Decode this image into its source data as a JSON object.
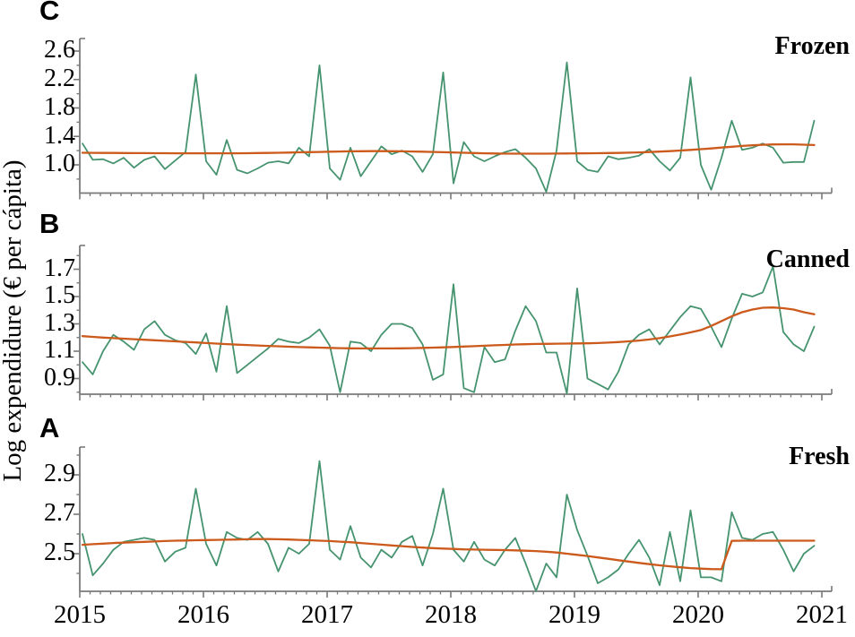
{
  "figure": {
    "y_axis_label": "Log expendidure (€ per cápita)",
    "x_tick_labels": [
      "2015",
      "2016",
      "2017",
      "2018",
      "2019",
      "2020",
      "2021"
    ],
    "colors": {
      "observed": "#46936f",
      "trend": "#cc5a1c",
      "axis": "#7a7a7a",
      "text": "#000000"
    }
  },
  "chart_data": [
    {
      "panel_letter": "C",
      "category_label": "Frozen",
      "type": "line",
      "x": {
        "start": "2015-01",
        "end": "2020-12",
        "frequency": "monthly",
        "n": 72
      },
      "x_tick_labels": [
        "2015",
        "2016",
        "2017",
        "2018",
        "2019",
        "2020",
        "2021"
      ],
      "ylim": [
        0.6,
        2.78
      ],
      "ytick_labels": [
        "1.0",
        "1.4",
        "1.8",
        "2.2",
        "2.6"
      ],
      "ytick_minor": [
        0.8,
        1.2,
        1.6,
        2.0,
        2.4
      ],
      "grid": false,
      "legend": "none",
      "series": [
        {
          "name": "monthly log expenditure",
          "color": "#46936f",
          "values": [
            1.3,
            1.07,
            1.08,
            1.02,
            1.1,
            0.96,
            1.07,
            1.12,
            0.94,
            1.06,
            1.18,
            2.27,
            1.05,
            0.86,
            1.35,
            0.93,
            0.88,
            0.95,
            1.03,
            1.05,
            1.02,
            1.24,
            1.12,
            2.4,
            0.95,
            0.79,
            1.24,
            0.84,
            1.05,
            1.26,
            1.15,
            1.2,
            1.12,
            0.9,
            1.15,
            2.3,
            0.74,
            1.32,
            1.12,
            1.05,
            1.12,
            1.18,
            1.22,
            1.1,
            0.95,
            0.62,
            1.2,
            2.44,
            1.05,
            0.93,
            0.9,
            1.12,
            1.08,
            1.1,
            1.13,
            1.22,
            1.05,
            0.92,
            1.1,
            2.23,
            1.0,
            0.65,
            1.1,
            1.62,
            1.21,
            1.24,
            1.3,
            1.24,
            1.03,
            1.04,
            1.04,
            1.62
          ]
        },
        {
          "name": "smoothed trend",
          "color": "#cc5a1c",
          "values": [
            1.17,
            1.169,
            1.168,
            1.167,
            1.166,
            1.165,
            1.165,
            1.164,
            1.164,
            1.163,
            1.163,
            1.162,
            1.162,
            1.162,
            1.162,
            1.163,
            1.164,
            1.166,
            1.168,
            1.17,
            1.173,
            1.176,
            1.179,
            1.182,
            1.185,
            1.188,
            1.19,
            1.192,
            1.193,
            1.193,
            1.192,
            1.19,
            1.188,
            1.185,
            1.182,
            1.178,
            1.174,
            1.17,
            1.166,
            1.163,
            1.16,
            1.158,
            1.157,
            1.157,
            1.157,
            1.158,
            1.159,
            1.16,
            1.161,
            1.162,
            1.164,
            1.166,
            1.168,
            1.171,
            1.175,
            1.18,
            1.186,
            1.193,
            1.201,
            1.21,
            1.22,
            1.231,
            1.243,
            1.255,
            1.266,
            1.275,
            1.282,
            1.287,
            1.289,
            1.288,
            1.284,
            1.278
          ]
        }
      ]
    },
    {
      "panel_letter": "B",
      "category_label": "Canned",
      "type": "line",
      "x": {
        "start": "2015-01",
        "end": "2020-12",
        "frequency": "monthly",
        "n": 72
      },
      "x_tick_labels": [
        "2015",
        "2016",
        "2017",
        "2018",
        "2019",
        "2020",
        "2021"
      ],
      "ylim": [
        0.78,
        1.87
      ],
      "ytick_labels": [
        "0.9",
        "1.1",
        "1.3",
        "1.5",
        "1.7"
      ],
      "ytick_minor": [
        0.8,
        1.0,
        1.2,
        1.4,
        1.6,
        1.8
      ],
      "grid": false,
      "legend": "none",
      "series": [
        {
          "name": "monthly log expenditure",
          "color": "#46936f",
          "values": [
            1.02,
            0.93,
            1.1,
            1.22,
            1.17,
            1.11,
            1.26,
            1.32,
            1.22,
            1.18,
            1.16,
            1.08,
            1.23,
            0.95,
            1.43,
            0.94,
            1.0,
            1.06,
            1.12,
            1.19,
            1.17,
            1.16,
            1.2,
            1.26,
            1.14,
            0.8,
            1.17,
            1.16,
            1.1,
            1.22,
            1.3,
            1.3,
            1.27,
            1.15,
            0.89,
            0.93,
            1.59,
            0.83,
            0.8,
            1.13,
            1.02,
            1.04,
            1.25,
            1.43,
            1.32,
            1.09,
            1.09,
            0.79,
            1.56,
            0.9,
            0.86,
            0.82,
            0.95,
            1.15,
            1.22,
            1.26,
            1.15,
            1.25,
            1.35,
            1.43,
            1.41,
            1.28,
            1.13,
            1.34,
            1.52,
            1.5,
            1.53,
            1.72,
            1.24,
            1.15,
            1.1,
            1.28
          ]
        },
        {
          "name": "smoothed trend",
          "color": "#cc5a1c",
          "values": [
            1.21,
            1.205,
            1.2,
            1.196,
            1.192,
            1.188,
            1.184,
            1.18,
            1.176,
            1.172,
            1.168,
            1.164,
            1.16,
            1.156,
            1.152,
            1.148,
            1.145,
            1.142,
            1.139,
            1.136,
            1.133,
            1.13,
            1.128,
            1.126,
            1.124,
            1.122,
            1.121,
            1.12,
            1.12,
            1.12,
            1.12,
            1.121,
            1.122,
            1.124,
            1.126,
            1.128,
            1.131,
            1.134,
            1.137,
            1.14,
            1.143,
            1.146,
            1.149,
            1.151,
            1.153,
            1.154,
            1.155,
            1.156,
            1.157,
            1.158,
            1.16,
            1.163,
            1.167,
            1.172,
            1.178,
            1.186,
            1.196,
            1.208,
            1.222,
            1.238,
            1.255,
            1.285,
            1.32,
            1.355,
            1.385,
            1.405,
            1.418,
            1.42,
            1.415,
            1.405,
            1.385,
            1.37
          ]
        }
      ]
    },
    {
      "panel_letter": "A",
      "category_label": "Fresh",
      "type": "line",
      "x": {
        "start": "2015-01",
        "end": "2020-12",
        "frequency": "monthly",
        "n": 72
      },
      "x_tick_labels": [
        "2015",
        "2016",
        "2017",
        "2018",
        "2019",
        "2020",
        "2021"
      ],
      "ylim": [
        2.31,
        3.04
      ],
      "ytick_labels": [
        "2.5",
        "2.7",
        "2.9"
      ],
      "ytick_minor": [
        2.4,
        2.6,
        2.8,
        3.0
      ],
      "grid": false,
      "legend": "none",
      "series": [
        {
          "name": "monthly log expenditure",
          "color": "#46936f",
          "values": [
            2.6,
            2.39,
            2.45,
            2.52,
            2.56,
            2.57,
            2.58,
            2.57,
            2.46,
            2.51,
            2.53,
            2.83,
            2.55,
            2.44,
            2.61,
            2.58,
            2.57,
            2.61,
            2.55,
            2.41,
            2.53,
            2.5,
            2.55,
            2.97,
            2.52,
            2.47,
            2.64,
            2.48,
            2.43,
            2.52,
            2.48,
            2.56,
            2.59,
            2.44,
            2.6,
            2.83,
            2.52,
            2.46,
            2.56,
            2.47,
            2.44,
            2.52,
            2.58,
            2.45,
            2.31,
            2.45,
            2.38,
            2.8,
            2.62,
            2.49,
            2.35,
            2.38,
            2.42,
            2.5,
            2.57,
            2.48,
            2.34,
            2.61,
            2.36,
            2.72,
            2.38,
            2.38,
            2.36,
            2.71,
            2.58,
            2.57,
            2.6,
            2.61,
            2.52,
            2.41,
            2.5,
            2.54
          ]
        },
        {
          "name": "smoothed trend",
          "color": "#cc5a1c",
          "values": [
            2.545,
            2.548,
            2.551,
            2.554,
            2.556,
            2.558,
            2.56,
            2.562,
            2.564,
            2.566,
            2.567,
            2.568,
            2.569,
            2.57,
            2.571,
            2.572,
            2.573,
            2.574,
            2.574,
            2.573,
            2.572,
            2.57,
            2.568,
            2.566,
            2.564,
            2.561,
            2.558,
            2.554,
            2.55,
            2.546,
            2.542,
            2.538,
            2.534,
            2.531,
            2.528,
            2.526,
            2.524,
            2.522,
            2.521,
            2.52,
            2.519,
            2.518,
            2.517,
            2.515,
            2.513,
            2.51,
            2.506,
            2.5,
            2.494,
            2.488,
            2.481,
            2.474,
            2.467,
            2.46,
            2.453,
            2.447,
            2.441,
            2.436,
            2.431,
            2.427,
            2.424,
            2.422,
            2.421,
            2.565,
            2.566,
            2.566,
            2.566,
            2.566,
            2.566,
            2.566,
            2.566,
            2.566
          ]
        }
      ]
    }
  ]
}
